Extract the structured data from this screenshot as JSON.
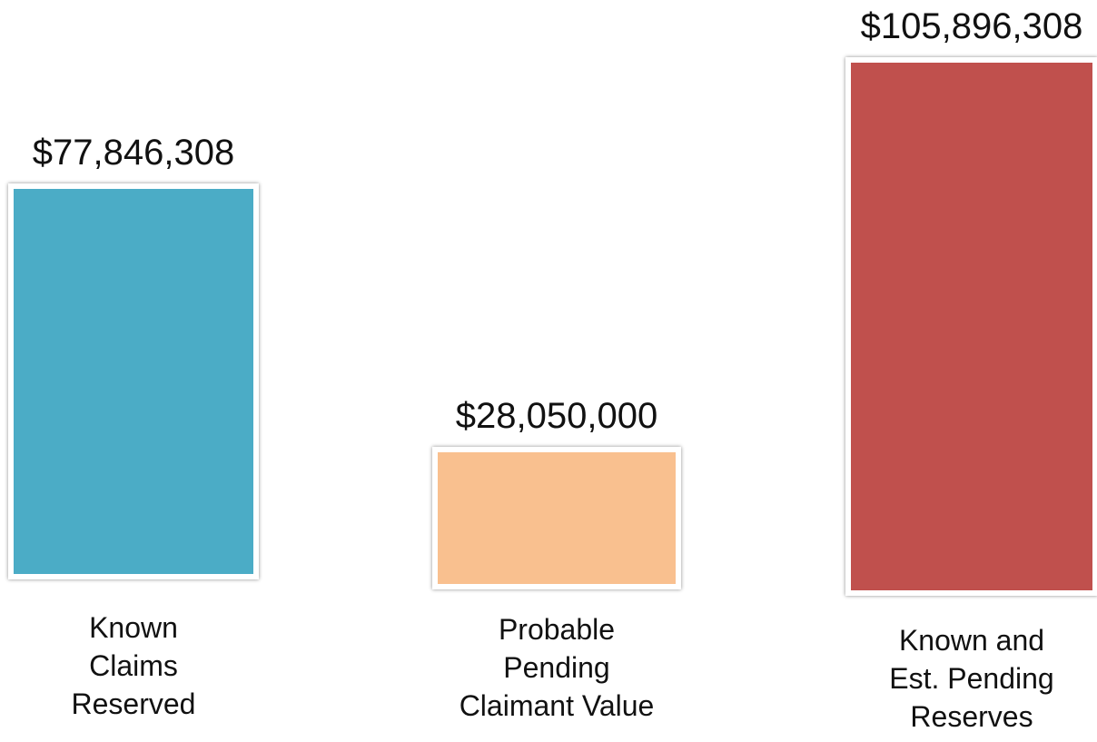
{
  "chart_data": {
    "type": "bar",
    "categories": [
      "Known\nClaims\nReserved",
      "Probable\nPending\nClaimant Value",
      "Known and\nEst. Pending\nReserves"
    ],
    "values": [
      77846308,
      28050000,
      105896308
    ],
    "value_labels": [
      "$77,846,308",
      "$28,050,000",
      "$105,896,308"
    ],
    "colors": [
      "#4bacc6",
      "#f9c08f",
      "#c0504d"
    ]
  }
}
